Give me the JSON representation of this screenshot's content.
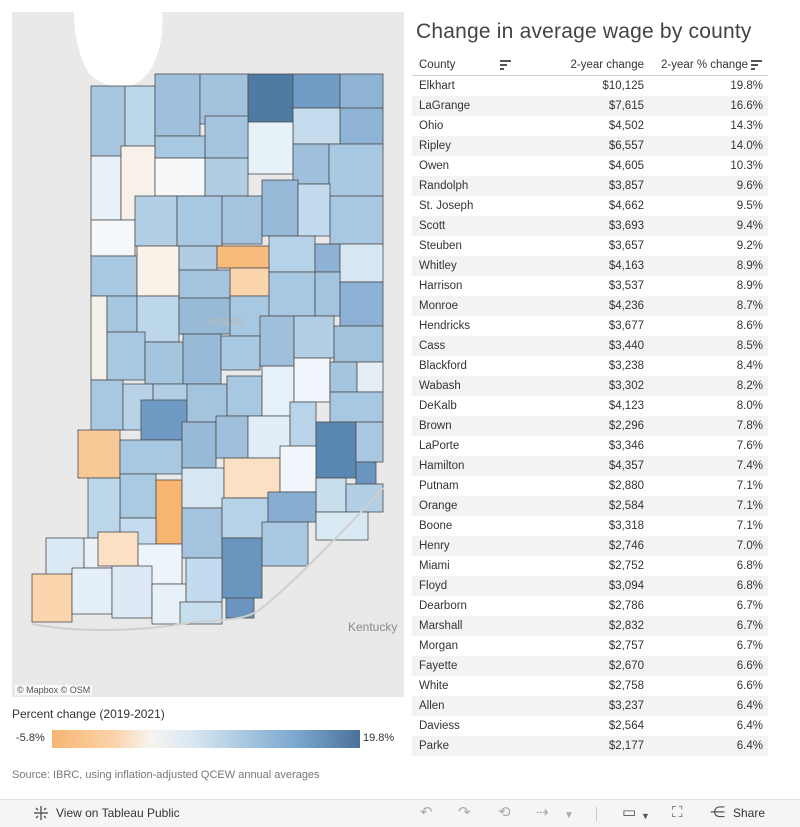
{
  "map": {
    "attribution": "© Mapbox  © OSM",
    "state_label": "Indiana",
    "neighbor_label": "Kentucky"
  },
  "legend": {
    "title": "Percent change (2019-2021)",
    "min": "-5.8%",
    "max": "19.8%",
    "colors": {
      "low": "#f8b572",
      "mid": "#f7f4ef",
      "high": "#4a7199"
    }
  },
  "source": "Source: IBRC, using inflation-adjusted QCEW annual averages",
  "title": "Change in average wage by county",
  "table": {
    "headers": {
      "county": "County",
      "change": "2-year change",
      "pct": "2-year % change"
    },
    "rows": [
      {
        "county": "Elkhart",
        "change": "$10,125",
        "pct": "19.8%"
      },
      {
        "county": "LaGrange",
        "change": "$7,615",
        "pct": "16.6%"
      },
      {
        "county": "Ohio",
        "change": "$4,502",
        "pct": "14.3%"
      },
      {
        "county": "Ripley",
        "change": "$6,557",
        "pct": "14.0%"
      },
      {
        "county": "Owen",
        "change": "$4,605",
        "pct": "10.3%"
      },
      {
        "county": "Randolph",
        "change": "$3,857",
        "pct": "9.6%"
      },
      {
        "county": "St. Joseph",
        "change": "$4,662",
        "pct": "9.5%"
      },
      {
        "county": "Scott",
        "change": "$3,693",
        "pct": "9.4%"
      },
      {
        "county": "Steuben",
        "change": "$3,657",
        "pct": "9.2%"
      },
      {
        "county": "Whitley",
        "change": "$4,163",
        "pct": "8.9%"
      },
      {
        "county": "Harrison",
        "change": "$3,537",
        "pct": "8.9%"
      },
      {
        "county": "Monroe",
        "change": "$4,236",
        "pct": "8.7%"
      },
      {
        "county": "Hendricks",
        "change": "$3,677",
        "pct": "8.6%"
      },
      {
        "county": "Cass",
        "change": "$3,440",
        "pct": "8.5%"
      },
      {
        "county": "Blackford",
        "change": "$3,238",
        "pct": "8.4%"
      },
      {
        "county": "Wabash",
        "change": "$3,302",
        "pct": "8.2%"
      },
      {
        "county": "DeKalb",
        "change": "$4,123",
        "pct": "8.0%"
      },
      {
        "county": "Brown",
        "change": "$2,296",
        "pct": "7.8%"
      },
      {
        "county": "LaPorte",
        "change": "$3,346",
        "pct": "7.6%"
      },
      {
        "county": "Hamilton",
        "change": "$4,357",
        "pct": "7.4%"
      },
      {
        "county": "Putnam",
        "change": "$2,880",
        "pct": "7.1%"
      },
      {
        "county": "Orange",
        "change": "$2,584",
        "pct": "7.1%"
      },
      {
        "county": "Boone",
        "change": "$3,318",
        "pct": "7.1%"
      },
      {
        "county": "Henry",
        "change": "$2,746",
        "pct": "7.0%"
      },
      {
        "county": "Miami",
        "change": "$2,752",
        "pct": "6.8%"
      },
      {
        "county": "Floyd",
        "change": "$3,094",
        "pct": "6.8%"
      },
      {
        "county": "Dearborn",
        "change": "$2,786",
        "pct": "6.7%"
      },
      {
        "county": "Marshall",
        "change": "$2,832",
        "pct": "6.7%"
      },
      {
        "county": "Morgan",
        "change": "$2,757",
        "pct": "6.7%"
      },
      {
        "county": "Fayette",
        "change": "$2,670",
        "pct": "6.6%"
      },
      {
        "county": "White",
        "change": "$2,758",
        "pct": "6.6%"
      },
      {
        "county": "Allen",
        "change": "$3,237",
        "pct": "6.4%"
      },
      {
        "county": "Daviess",
        "change": "$2,564",
        "pct": "6.4%"
      },
      {
        "county": "Parke",
        "change": "$2,177",
        "pct": "6.4%"
      }
    ]
  },
  "footer": {
    "view_label": "View on Tableau Public",
    "share_label": "Share",
    "icons": [
      "tableau-icon",
      "undo-icon",
      "redo-icon",
      "revert-icon",
      "refresh-icon",
      "chevron-down-icon",
      "comment-icon",
      "fullscreen-icon",
      "share-icon"
    ]
  }
}
